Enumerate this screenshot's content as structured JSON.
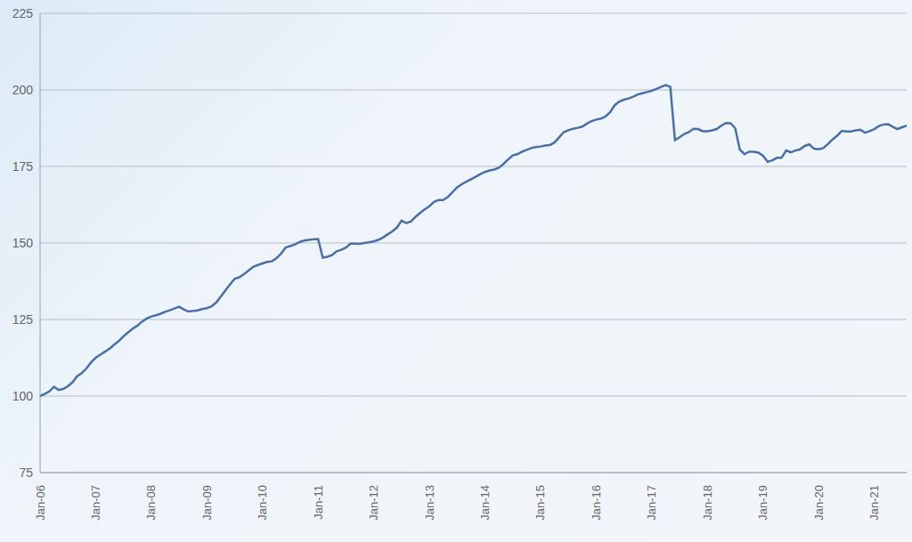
{
  "chart_data": {
    "type": "line",
    "color": "#4a6fa5",
    "grid": true,
    "ylim": [
      75,
      225
    ],
    "yticks": [
      75,
      100,
      125,
      150,
      175,
      200,
      225
    ],
    "categories": [
      "Jan-06",
      null,
      null,
      null,
      null,
      null,
      null,
      null,
      null,
      null,
      null,
      null,
      "Jan-07",
      null,
      null,
      null,
      null,
      null,
      null,
      null,
      null,
      null,
      null,
      null,
      "Jan-08",
      null,
      null,
      null,
      null,
      null,
      null,
      null,
      null,
      null,
      null,
      null,
      "Jan-09",
      null,
      null,
      null,
      null,
      null,
      null,
      null,
      null,
      null,
      null,
      null,
      "Jan-10",
      null,
      null,
      null,
      null,
      null,
      null,
      null,
      null,
      null,
      null,
      null,
      "Jan-11",
      null,
      null,
      null,
      null,
      null,
      null,
      null,
      null,
      null,
      null,
      null,
      "Jan-12",
      null,
      null,
      null,
      null,
      null,
      null,
      null,
      null,
      null,
      null,
      null,
      "Jan-13",
      null,
      null,
      null,
      null,
      null,
      null,
      null,
      null,
      null,
      null,
      null,
      "Jan-14",
      null,
      null,
      null,
      null,
      null,
      null,
      null,
      null,
      null,
      null,
      null,
      "Jan-15",
      null,
      null,
      null,
      null,
      null,
      null,
      null,
      null,
      null,
      null,
      null,
      "Jan-16",
      null,
      null,
      null,
      null,
      null,
      null,
      null,
      null,
      null,
      null,
      null,
      "Jan-17",
      null,
      null,
      null,
      null,
      null,
      null,
      null,
      null,
      null,
      null,
      null,
      "Jan-18",
      null,
      null,
      null,
      null,
      null,
      null,
      null,
      null,
      null,
      null,
      null,
      "Jan-19",
      null,
      null,
      null,
      null,
      null,
      null,
      null,
      null,
      null,
      null,
      null,
      "Jan-20",
      null,
      null,
      null,
      null,
      null,
      null,
      null,
      null,
      null,
      null,
      null,
      "Jan-21",
      null,
      null,
      null,
      null,
      null,
      null,
      null
    ],
    "values": [
      100,
      100.7,
      101.5,
      103,
      102,
      102.3,
      103.2,
      104.5,
      106.5,
      107.5,
      109,
      111,
      112.5,
      113.5,
      114.5,
      115.5,
      116.8,
      118,
      119.5,
      120.8,
      122,
      123,
      124.3,
      125.3,
      126,
      126.4,
      126.9,
      127.5,
      128,
      128.6,
      129.2,
      128.3,
      127.6,
      127.8,
      128,
      128.4,
      128.7,
      129.3,
      130.5,
      132.5,
      134.5,
      136.5,
      138.3,
      138.8,
      139.8,
      141,
      142.2,
      142.8,
      143.3,
      143.8,
      144,
      145,
      146.5,
      148.5,
      149,
      149.5,
      150.3,
      150.8,
      151,
      151.2,
      151.3,
      145.2,
      145.5,
      146,
      147.3,
      147.8,
      148.5,
      149.8,
      149.8,
      149.7,
      150,
      150.2,
      150.5,
      151,
      151.8,
      152.8,
      153.8,
      155,
      157.3,
      156.5,
      157,
      158.5,
      159.8,
      161,
      162,
      163.4,
      164,
      164,
      165,
      166.6,
      168.2,
      169.2,
      170,
      170.8,
      171.6,
      172.5,
      173.2,
      173.7,
      174,
      174.6,
      175.8,
      177.3,
      178.6,
      179,
      179.8,
      180.4,
      181,
      181.3,
      181.5,
      181.8,
      182,
      182.8,
      184.5,
      186.2,
      186.8,
      187.3,
      187.6,
      188,
      189,
      189.8,
      190.3,
      190.6,
      191.3,
      192.7,
      195,
      196.2,
      196.8,
      197.2,
      197.8,
      198.5,
      198.9,
      199.3,
      199.7,
      200.3,
      201,
      201.6,
      201,
      183.6,
      184.5,
      185.6,
      186.2,
      187.3,
      187.2,
      186.5,
      186.5,
      186.8,
      187.2,
      188.3,
      189.2,
      189.1,
      187.5,
      180.5,
      179,
      179.8,
      179.8,
      179.5,
      178.5,
      176.5,
      177,
      177.8,
      177.8,
      180.2,
      179.6,
      180.2,
      180.6,
      181.7,
      182.2,
      180.8,
      180.6,
      181,
      182.3,
      183.8,
      185,
      186.6,
      186.4,
      186.4,
      186.8,
      187,
      186,
      186.5,
      187.2,
      188.2,
      188.7,
      188.8,
      188,
      187.2,
      187.8,
      188.3
    ]
  }
}
